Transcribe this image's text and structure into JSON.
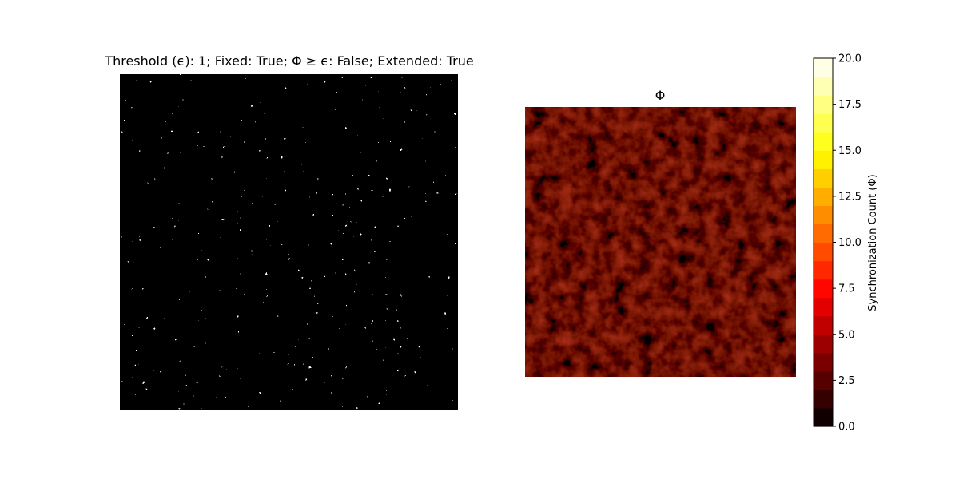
{
  "chart_data": [
    {
      "type": "heatmap",
      "title": "Threshold (ϵ): 1; Fixed: True; Φ ≥ ϵ: False; Extended: True",
      "xlabel": "",
      "ylabel": "",
      "colormap": "binary",
      "colors": {
        "background": "#000000",
        "foreground": "#ffffff"
      },
      "grid": false,
      "axes_visible": false
    },
    {
      "type": "heatmap",
      "title": "Φ",
      "xlabel": "",
      "ylabel": "",
      "colormap": "hot (20 discrete levels)",
      "grid": false,
      "axes_visible": false,
      "colorbar": {
        "label": "Synchronization Count (Φ)",
        "range": [
          0,
          20
        ],
        "levels": 20,
        "ticks": [
          "0.0",
          "2.5",
          "5.0",
          "7.5",
          "10.0",
          "12.5",
          "15.0",
          "17.5",
          "20.0"
        ],
        "placement": "right"
      }
    }
  ]
}
